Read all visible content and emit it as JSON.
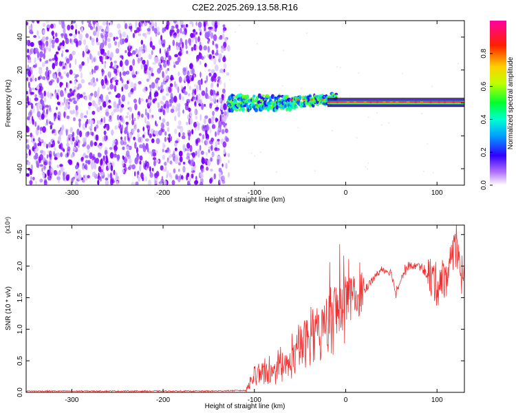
{
  "title": "C2E2.2025.269.13.58.R16",
  "chart_data": [
    {
      "type": "heatmap",
      "xlabel": "Height of straight line (km)",
      "ylabel": "Frequency (Hz)",
      "xlim": [
        -350,
        130
      ],
      "ylim": [
        -50,
        50
      ],
      "x_ticks": [
        -300,
        -200,
        -100,
        0,
        100
      ],
      "x_tick_labels": [
        "-300",
        "-200",
        "-100",
        "0",
        "100"
      ],
      "y_ticks": [
        -40,
        -20,
        0,
        20,
        40
      ],
      "y_tick_labels": [
        "-40",
        "-20",
        "0",
        "20",
        "40"
      ],
      "colorbar": {
        "label": "Normalized spectral amplitude",
        "range": [
          0,
          1
        ],
        "ticks": [
          0.0,
          0.2,
          0.4,
          0.6,
          0.8
        ],
        "tick_labels": [
          "0.0",
          "0.2",
          "0.4",
          "0.6",
          "0.8"
        ]
      },
      "noise_region_x": [
        -350,
        -128
      ],
      "signal_region_x": [
        -128,
        130
      ],
      "signal_center_frequency": 0.5,
      "colors": {
        "noise": "#7b00ff",
        "line": "#000000"
      }
    },
    {
      "type": "line",
      "xlabel": "Height of straight line (km)",
      "ylabel": "SNR (10 * v/v)",
      "y_exponent_label": "(x10⁴)",
      "xlim": [
        -350,
        130
      ],
      "ylim": [
        0,
        2.65
      ],
      "x_ticks": [
        -300,
        -200,
        -100,
        0,
        100
      ],
      "x_tick_labels": [
        "-300",
        "-200",
        "-100",
        "0",
        "100"
      ],
      "y_ticks": [
        0.0,
        0.5,
        1.0,
        1.5,
        2.0,
        2.5
      ],
      "y_tick_labels": [
        "0.0",
        "0.5",
        "1.0",
        "1.5",
        "2.0",
        "2.5"
      ],
      "series": [
        {
          "color": "#f03030",
          "x": [
            -350,
            -300,
            -250,
            -200,
            -150,
            -110,
            -100,
            -90,
            -80,
            -70,
            -60,
            -50,
            -40,
            -30,
            -20,
            -10,
            0,
            10,
            20,
            30,
            40,
            50,
            55,
            60,
            70,
            80,
            90,
            100,
            110,
            120,
            130
          ],
          "y": [
            0.02,
            0.02,
            0.02,
            0.02,
            0.02,
            0.03,
            0.25,
            0.32,
            0.28,
            0.35,
            0.45,
            0.7,
            0.85,
            0.9,
            1.05,
            1.25,
            1.45,
            1.5,
            1.6,
            1.8,
            1.95,
            1.9,
            1.55,
            1.8,
            2.0,
            2.0,
            1.85,
            1.7,
            1.85,
            2.2,
            1.7
          ]
        }
      ]
    }
  ]
}
